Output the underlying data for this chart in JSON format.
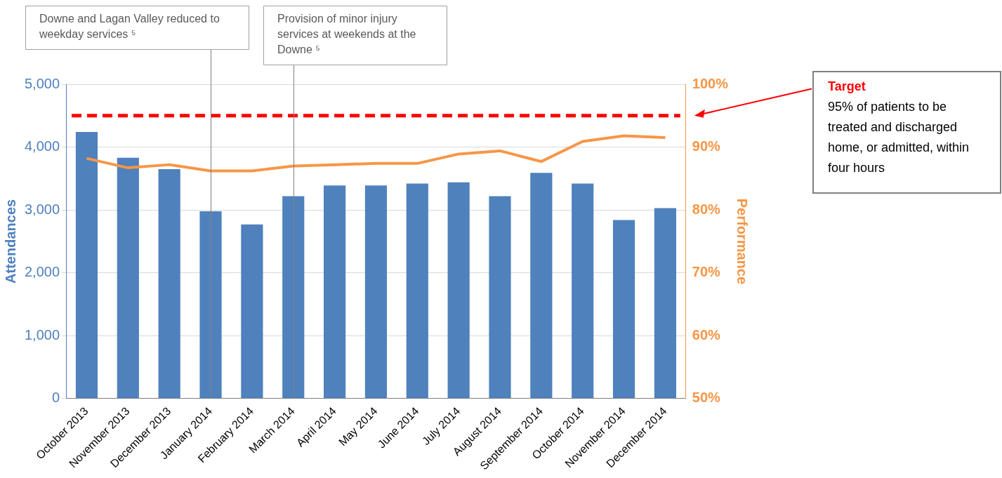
{
  "chart_data": {
    "type": "bar",
    "ylabel": "Attendances",
    "y2label": "Performance",
    "categories": [
      "October 2013",
      "November 2013",
      "December 2013",
      "January 2014",
      "February 2014",
      "March 2014",
      "April 2014",
      "May 2014",
      "June 2014",
      "July 2014",
      "August 2014",
      "September 2014",
      "October 2014",
      "November 2014",
      "December 2014"
    ],
    "series": [
      {
        "color": "#4f81bd",
        "values": [
          4240,
          3830,
          3650,
          2980,
          2770,
          3220,
          3390,
          3390,
          3420,
          3440,
          3220,
          3590,
          3420,
          2840,
          3030
        ]
      },
      {
        "type": "line",
        "axis": "y2",
        "color": "#f79646",
        "values": [
          88.2,
          86.7,
          87.2,
          86.2,
          86.2,
          87.0,
          87.2,
          87.4,
          87.4,
          88.9,
          89.4,
          87.7,
          90.9,
          91.8,
          91.5
        ]
      }
    ],
    "ylim": [
      0,
      5000
    ],
    "yticks": [
      {
        "value": 0,
        "label": "0"
      },
      {
        "value": 1000,
        "label": "1,000"
      },
      {
        "value": 2000,
        "label": "2,000"
      },
      {
        "value": 3000,
        "label": "3,000"
      },
      {
        "value": 4000,
        "label": "4,000"
      },
      {
        "value": 5000,
        "label": "5,000"
      }
    ],
    "y2lim": [
      50,
      100
    ],
    "y2ticks": [
      {
        "value": 50,
        "label": "50%"
      },
      {
        "value": 60,
        "label": "60%"
      },
      {
        "value": 70,
        "label": "70%"
      },
      {
        "value": 80,
        "label": "80%"
      },
      {
        "value": 90,
        "label": "90%"
      },
      {
        "value": 100,
        "label": "100%"
      }
    ],
    "grid": "y",
    "legend": false,
    "marker": "none",
    "ref_lines": [
      {
        "axis": "y2",
        "value": 95,
        "label": "Target",
        "color": "#ff0000",
        "line_style": "dashed"
      },
      {
        "axis": "x",
        "value": "January 2014",
        "label": "Downe and Lagan Valley reduced to weekday services ⁵",
        "color": "#808080"
      },
      {
        "axis": "x",
        "value": "March 2014",
        "label": "Provision of minor injury services at weekends at the Downe ⁵",
        "color": "#808080"
      }
    ],
    "annotations": [
      "95% of patients to be treated and discharged home, or admitted, within four hours"
    ]
  }
}
